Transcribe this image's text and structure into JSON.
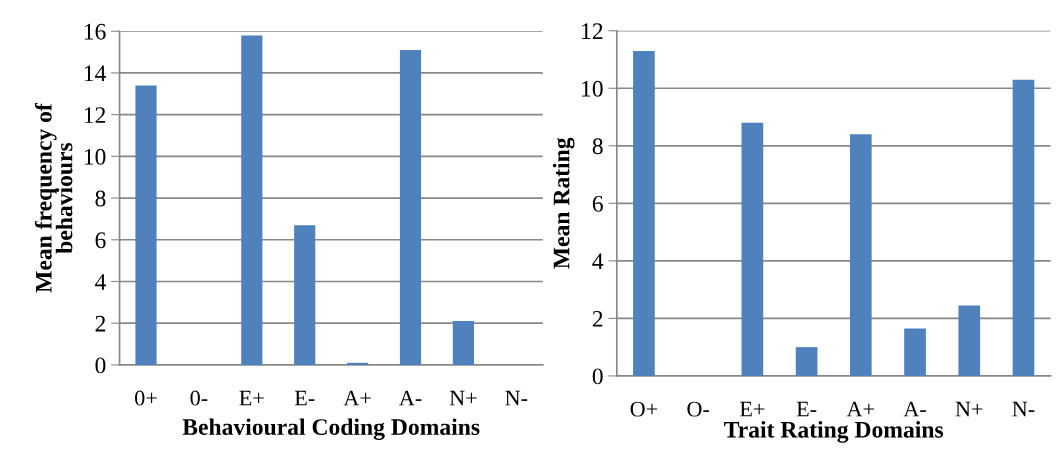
{
  "chart_data": [
    {
      "type": "bar",
      "xlabel": "Behavioural Coding Domains",
      "ylabel": "Mean frequency of\nbehaviours",
      "categories": [
        "0+",
        "0-",
        "E+",
        "E-",
        "A+",
        "A-",
        "N+",
        "N-"
      ],
      "color": "#4f81bd",
      "values": [
        13.4,
        0,
        15.8,
        6.7,
        0.1,
        15.1,
        2.1,
        0
      ],
      "ylim": [
        0,
        16
      ],
      "yticks": [
        0,
        2,
        4,
        6,
        8,
        10,
        12,
        14,
        16
      ],
      "grid": "y"
    },
    {
      "type": "bar",
      "xlabel": "Trait Rating Domains",
      "ylabel": "Mean Rating",
      "categories": [
        "O+",
        "O-",
        "E+",
        "E-",
        "A+",
        "A-",
        "N+",
        "N-"
      ],
      "color": "#4f81bd",
      "values": [
        11.3,
        0,
        8.8,
        1.0,
        8.4,
        1.65,
        2.45,
        10.3
      ],
      "ylim": [
        0,
        12
      ],
      "yticks": [
        0,
        2,
        4,
        6,
        8,
        10,
        12
      ],
      "grid": "y"
    }
  ]
}
